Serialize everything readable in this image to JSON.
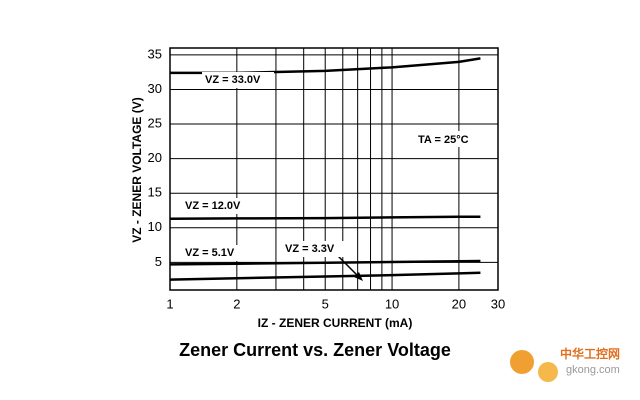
{
  "chart_data": {
    "type": "line",
    "title": "Zener Current vs. Zener Voltage",
    "x_label": "IZ - ZENER CURRENT (mA)",
    "y_label": "VZ - ZENER VOLTAGE (V)",
    "annotation": "TA = 25°C",
    "x": [
      1,
      2,
      5,
      10,
      20,
      25
    ],
    "series": [
      {
        "name": "VZ = 33.0V",
        "color": "#000000",
        "values": [
          32.4,
          32.4,
          32.7,
          33.2,
          34.0,
          34.5
        ]
      },
      {
        "name": "VZ = 12.0V",
        "color": "#000000",
        "values": [
          11.3,
          11.35,
          11.4,
          11.5,
          11.6,
          11.6
        ]
      },
      {
        "name": "VZ = 5.1V",
        "color": "#000000",
        "values": [
          4.7,
          4.8,
          4.95,
          5.05,
          5.15,
          5.2
        ]
      },
      {
        "name": "VZ = 3.3V",
        "color": "#000000",
        "values": [
          2.5,
          2.7,
          2.95,
          3.15,
          3.4,
          3.5
        ]
      }
    ],
    "x_log": true,
    "xlim": [
      1,
      30
    ],
    "xticks": [
      1,
      2,
      5,
      10,
      20,
      30
    ],
    "minor_xticks": [
      3,
      4,
      6,
      7,
      8,
      9
    ],
    "ylim": [
      1,
      36
    ],
    "yticks": [
      5,
      10,
      15,
      20,
      25,
      30,
      35
    ],
    "grid": true,
    "watermark": [
      "中华工控网",
      "gkong.com"
    ]
  }
}
